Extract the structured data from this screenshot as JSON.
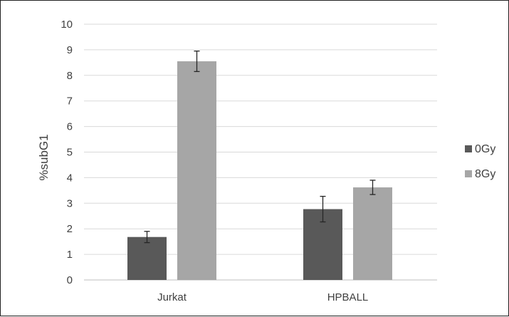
{
  "chart_data": {
    "type": "bar",
    "title": "",
    "xlabel": "",
    "ylabel": "%subG1",
    "ylim": [
      0,
      10
    ],
    "yticks": [
      "0",
      "1",
      "2",
      "3",
      "4",
      "5",
      "6",
      "7",
      "8",
      "9",
      "10"
    ],
    "categories": [
      "Jurkat",
      "HPBALL"
    ],
    "series": [
      {
        "name": "0Gy",
        "color": "#595959",
        "values": [
          1.68,
          2.77
        ],
        "error": [
          0.22,
          0.5
        ]
      },
      {
        "name": "8Gy",
        "color": "#a6a6a6",
        "values": [
          8.55,
          3.62
        ],
        "error": [
          0.4,
          0.28
        ]
      }
    ],
    "grid": true,
    "legend_position": "right"
  }
}
